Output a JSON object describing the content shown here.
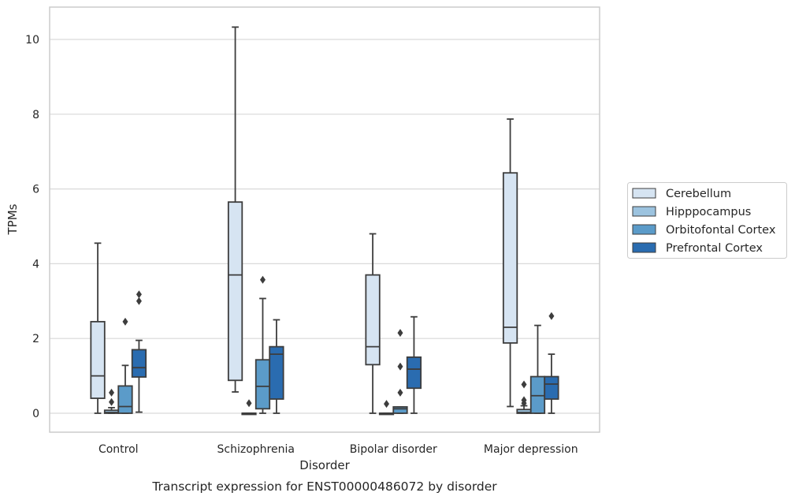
{
  "chart_data": {
    "type": "box",
    "xlabel": "Disorder",
    "ylabel": "TPMs",
    "caption": "Transcript expression for ENST00000486072 by disorder",
    "ylim": [
      -0.5,
      10.85
    ],
    "yticks": [
      0,
      2,
      4,
      6,
      8,
      10
    ],
    "grid": "horizontal",
    "legend_position": "right",
    "categories": [
      "Control",
      "Schizophrenia",
      "Bipolar disorder",
      "Major depression"
    ],
    "series": [
      {
        "name": "Cerebellum",
        "color": "#d6e4f2",
        "boxes": [
          {
            "whislo": 0.0,
            "q1": 0.4,
            "med": 1.0,
            "q3": 2.45,
            "whishi": 4.55,
            "fliers": []
          },
          {
            "whislo": 0.57,
            "q1": 0.88,
            "med": 3.7,
            "q3": 5.65,
            "whishi": 10.33,
            "fliers": []
          },
          {
            "whislo": 0.0,
            "q1": 1.3,
            "med": 1.78,
            "q3": 3.7,
            "whishi": 4.8,
            "fliers": []
          },
          {
            "whislo": 0.18,
            "q1": 1.88,
            "med": 2.3,
            "q3": 6.43,
            "whishi": 7.87,
            "fliers": []
          }
        ]
      },
      {
        "name": "Hipppocampus",
        "color": "#9cc3df",
        "boxes": [
          {
            "whislo": 0.0,
            "q1": 0.0,
            "med": 0.02,
            "q3": 0.08,
            "whishi": 0.15,
            "fliers": [
              0.3,
              0.55
            ]
          },
          {
            "whislo": 0.0,
            "q1": 0.0,
            "med": 0.0,
            "q3": 0.0,
            "whishi": 0.0,
            "fliers": [
              0.27
            ]
          },
          {
            "whislo": 0.0,
            "q1": 0.0,
            "med": 0.0,
            "q3": 0.0,
            "whishi": 0.0,
            "fliers": [
              0.25
            ]
          },
          {
            "whislo": 0.0,
            "q1": 0.0,
            "med": 0.02,
            "q3": 0.1,
            "whishi": 0.2,
            "fliers": [
              0.27,
              0.35,
              0.77
            ]
          }
        ]
      },
      {
        "name": "Orbitofontal Cortex",
        "color": "#5b9bc9",
        "boxes": [
          {
            "whislo": 0.0,
            "q1": 0.0,
            "med": 0.18,
            "q3": 0.73,
            "whishi": 1.28,
            "fliers": [
              2.45
            ]
          },
          {
            "whislo": 0.0,
            "q1": 0.12,
            "med": 0.72,
            "q3": 1.43,
            "whishi": 3.07,
            "fliers": [
              3.57
            ]
          },
          {
            "whislo": 0.0,
            "q1": 0.0,
            "med": 0.12,
            "q3": 0.17,
            "whishi": 0.17,
            "fliers": [
              0.55,
              1.25,
              2.15
            ]
          },
          {
            "whislo": 0.0,
            "q1": 0.0,
            "med": 0.47,
            "q3": 0.98,
            "whishi": 2.35,
            "fliers": []
          }
        ]
      },
      {
        "name": "Prefrontal Cortex",
        "color": "#2a6cb0",
        "boxes": [
          {
            "whislo": 0.03,
            "q1": 0.97,
            "med": 1.22,
            "q3": 1.7,
            "whishi": 1.95,
            "fliers": [
              3.0,
              3.18
            ]
          },
          {
            "whislo": 0.0,
            "q1": 0.38,
            "med": 1.58,
            "q3": 1.78,
            "whishi": 2.5,
            "fliers": []
          },
          {
            "whislo": 0.0,
            "q1": 0.67,
            "med": 1.18,
            "q3": 1.5,
            "whishi": 2.58,
            "fliers": []
          },
          {
            "whislo": 0.0,
            "q1": 0.38,
            "med": 0.78,
            "q3": 0.98,
            "whishi": 1.58,
            "fliers": [
              2.6
            ]
          }
        ]
      }
    ]
  }
}
